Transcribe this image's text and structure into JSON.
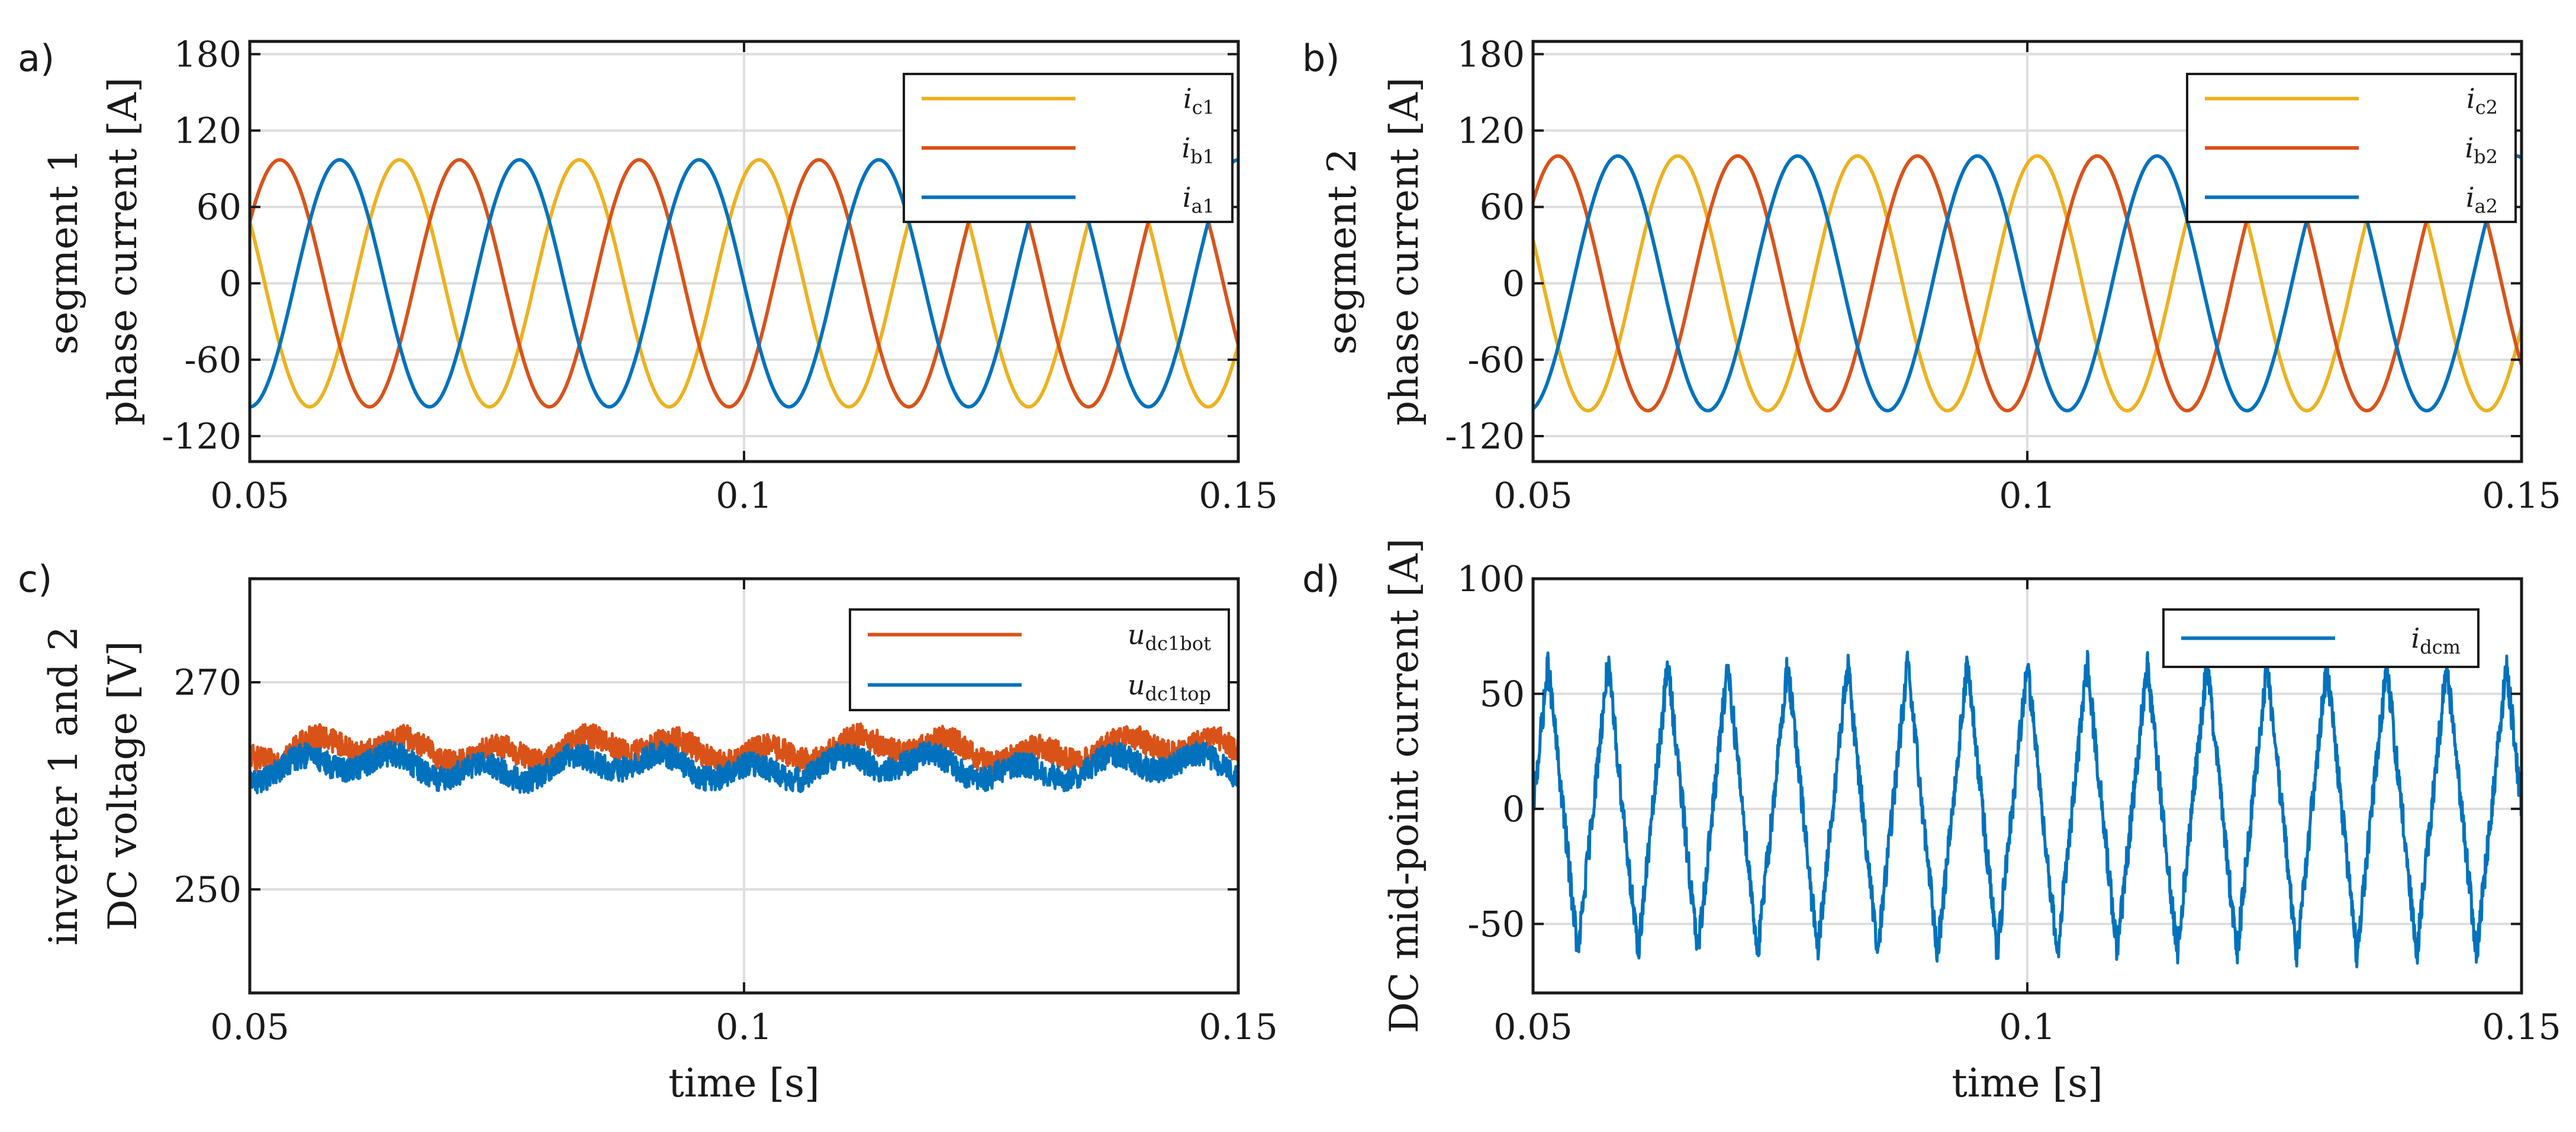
{
  "chart_data": [
    {
      "type": "line",
      "panel_label": "a)",
      "ylabel_line1": "segment 1",
      "ylabel_line2": "phase current [A]",
      "xlabel": "",
      "xlim": [
        0.05,
        0.15
      ],
      "ylim": [
        -140,
        190
      ],
      "xticks": [
        0.05,
        0.1,
        0.15
      ],
      "xtick_labels": [
        "0.05",
        "0.1",
        "0.15"
      ],
      "yticks": [
        180,
        120,
        60,
        0,
        -60,
        -120
      ],
      "ytick_labels": [
        "180",
        "120",
        "60",
        "0",
        "-60",
        "-120"
      ],
      "grid": true,
      "legend_position": "top-right",
      "signal": {
        "kind": "sine",
        "frequency_hz": 55,
        "amplitude": 97
      },
      "series": [
        {
          "name": "i",
          "sub": "c1",
          "color": "#edb120",
          "phase_deg": -120
        },
        {
          "name": "i",
          "sub": "b1",
          "color": "#d95319",
          "phase_deg": 120
        },
        {
          "name": "i",
          "sub": "a1",
          "color": "#0072bd",
          "phase_deg": 0
        }
      ]
    },
    {
      "type": "line",
      "panel_label": "b)",
      "ylabel_line1": "segment 2",
      "ylabel_line2": "phase current [A]",
      "xlabel": "",
      "xlim": [
        0.05,
        0.15
      ],
      "ylim": [
        -140,
        190
      ],
      "xticks": [
        0.05,
        0.1,
        0.15
      ],
      "xtick_labels": [
        "0.05",
        "0.1",
        "0.15"
      ],
      "yticks": [
        180,
        120,
        60,
        0,
        -60,
        -120
      ],
      "ytick_labels": [
        "180",
        "120",
        "60",
        "0",
        "-60",
        "-120"
      ],
      "grid": true,
      "legend_position": "top-right",
      "signal": {
        "kind": "sine",
        "frequency_hz": 55,
        "amplitude": 100
      },
      "series": [
        {
          "name": "i",
          "sub": "c2",
          "color": "#edb120",
          "phase_deg": -110
        },
        {
          "name": "i",
          "sub": "b2",
          "color": "#d95319",
          "phase_deg": 130
        },
        {
          "name": "i",
          "sub": "a2",
          "color": "#0072bd",
          "phase_deg": 10
        }
      ]
    },
    {
      "type": "line",
      "panel_label": "c)",
      "ylabel_line1": "inverter 1 and 2",
      "ylabel_line2": "DC voltage [V]",
      "xlabel": "time [s]",
      "xlim": [
        0.05,
        0.15
      ],
      "ylim": [
        240,
        280
      ],
      "xticks": [
        0.05,
        0.1,
        0.15
      ],
      "xtick_labels": [
        "0.05",
        "0.1",
        "0.15"
      ],
      "yticks": [
        270,
        250
      ],
      "ytick_labels": [
        "270",
        "250"
      ],
      "grid": true,
      "legend_position": "top-right",
      "signal": {
        "kind": "noisy-ripple",
        "frequency_hz": 110
      },
      "series": [
        {
          "name": "u",
          "sub": "dc1bot",
          "color": "#d95319",
          "mean": 263.5,
          "ripple": 0.9,
          "noise": 1.2
        },
        {
          "name": "u",
          "sub": "dc1top",
          "color": "#0072bd",
          "mean": 261.8,
          "ripple": 0.9,
          "noise": 1.2
        }
      ]
    },
    {
      "type": "line",
      "panel_label": "d)",
      "ylabel_line1": "DC mid-point current [A]",
      "ylabel_line2": "",
      "xlabel": "time [s]",
      "xlim": [
        0.05,
        0.15
      ],
      "ylim": [
        -80,
        100
      ],
      "xticks": [
        0.05,
        0.1,
        0.15
      ],
      "xtick_labels": [
        "0.05",
        "0.1",
        "0.15"
      ],
      "yticks": [
        100,
        50,
        0,
        -50
      ],
      "ytick_labels": [
        "100",
        "50",
        "0",
        "-50"
      ],
      "grid": true,
      "legend_position": "top-right",
      "signal": {
        "kind": "noisy-triangle",
        "frequency_hz": 165,
        "amplitude": 63,
        "noise": 7
      },
      "series": [
        {
          "name": "i",
          "sub": "dcm",
          "color": "#0072bd"
        }
      ]
    }
  ]
}
